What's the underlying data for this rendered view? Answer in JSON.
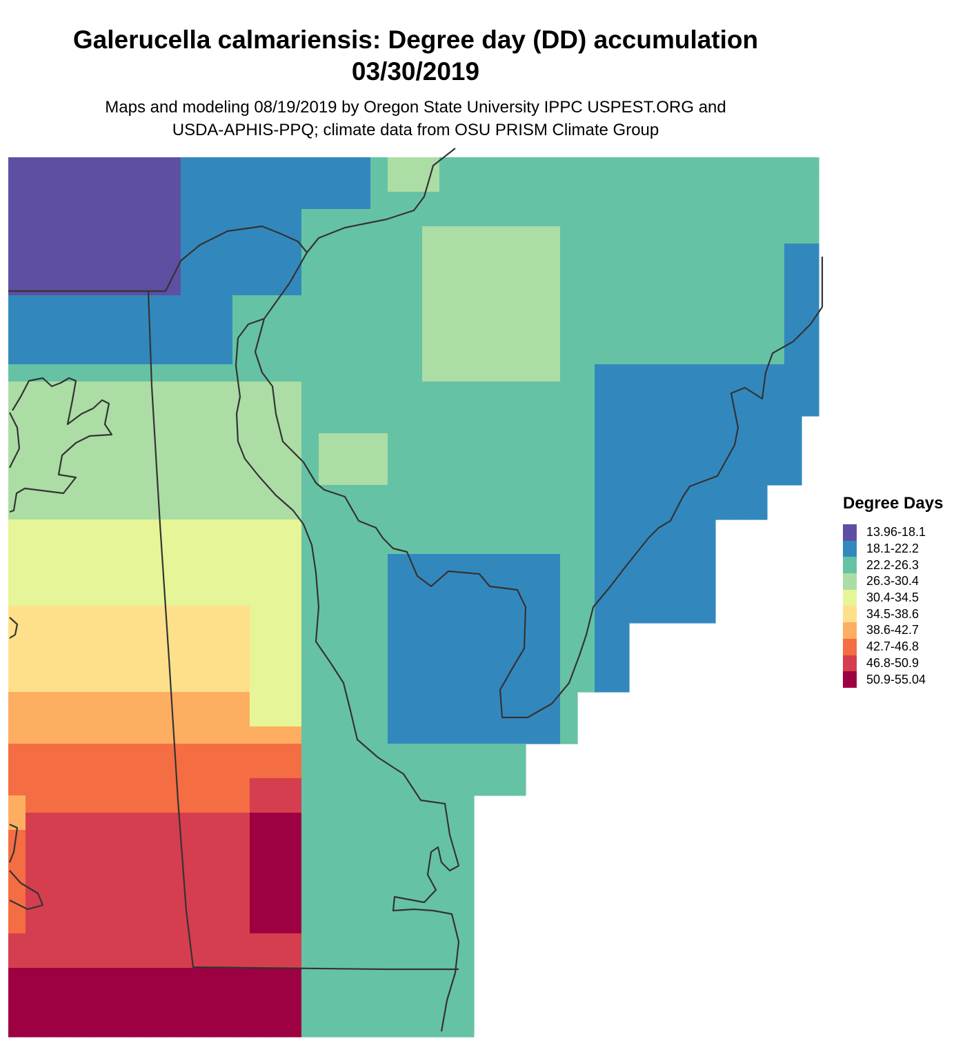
{
  "header": {
    "title_line1": "Galerucella calmariensis: Degree day (DD) accumulation",
    "title_line2": "03/30/2019",
    "subtitle_line1": "Maps and modeling 08/19/2019 by Oregon State University IPPC USPEST.ORG and",
    "subtitle_line2": "USDA-APHIS-PPQ; climate data from OSU PRISM Climate Group"
  },
  "legend": {
    "title": "Degree Days",
    "items": [
      {
        "label": "13.96-18.1",
        "color": "#5e4fa2"
      },
      {
        "label": "18.1-22.2",
        "color": "#3288bd"
      },
      {
        "label": "22.2-26.3",
        "color": "#66c2a5"
      },
      {
        "label": "26.3-30.4",
        "color": "#abdda4"
      },
      {
        "label": "30.4-34.5",
        "color": "#e6f598"
      },
      {
        "label": "34.5-38.6",
        "color": "#fee08b"
      },
      {
        "label": "38.6-42.7",
        "color": "#fdae61"
      },
      {
        "label": "42.7-46.8",
        "color": "#f46d43"
      },
      {
        "label": "46.8-50.9",
        "color": "#d53e4f"
      },
      {
        "label": "50.9-55.04",
        "color": "#9e0142"
      }
    ]
  },
  "map": {
    "boundary_color": "#333333"
  }
}
